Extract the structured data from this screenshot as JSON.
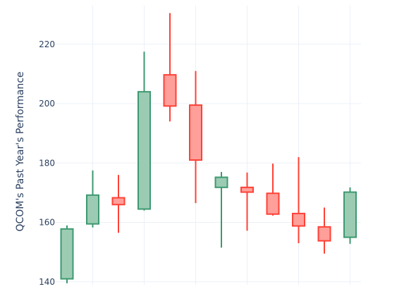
{
  "chart_data": {
    "type": "candlestick",
    "title": "",
    "xlabel": "",
    "ylabel": "QCOM's Past Year's Performance",
    "ylim": [
      139,
      233
    ],
    "y_ticks": [
      140,
      160,
      180,
      200,
      220
    ],
    "x_tick_labels": [],
    "grid": true,
    "legend": "none",
    "colors": {
      "increasing_line": "#3d9970",
      "increasing_fill": "#9ccbb4",
      "decreasing_line": "#ff4136",
      "decreasing_fill": "#ff9f9a",
      "grid": "#ebf0f8",
      "text": "#2a3f5f"
    },
    "candles": [
      {
        "open": 141,
        "high": 159,
        "low": 139.5,
        "close": 157.8
      },
      {
        "open": 159.5,
        "high": 177.5,
        "low": 158.3,
        "close": 169.2
      },
      {
        "open": 168.3,
        "high": 176,
        "low": 156.5,
        "close": 166
      },
      {
        "open": 164.5,
        "high": 217.5,
        "low": 164,
        "close": 204
      },
      {
        "open": 209.7,
        "high": 230.5,
        "low": 194,
        "close": 199.2
      },
      {
        "open": 199.5,
        "high": 211,
        "low": 166.5,
        "close": 181
      },
      {
        "open": 171.8,
        "high": 177,
        "low": 151.5,
        "close": 175.2
      },
      {
        "open": 171.8,
        "high": 176.8,
        "low": 157.2,
        "close": 170.2
      },
      {
        "open": 169.8,
        "high": 179.8,
        "low": 162.3,
        "close": 162.8
      },
      {
        "open": 163,
        "high": 182,
        "low": 153,
        "close": 158.8
      },
      {
        "open": 158.5,
        "high": 165,
        "low": 149.5,
        "close": 153.8
      },
      {
        "open": 155,
        "high": 171.8,
        "low": 152.8,
        "close": 170.2
      }
    ]
  }
}
